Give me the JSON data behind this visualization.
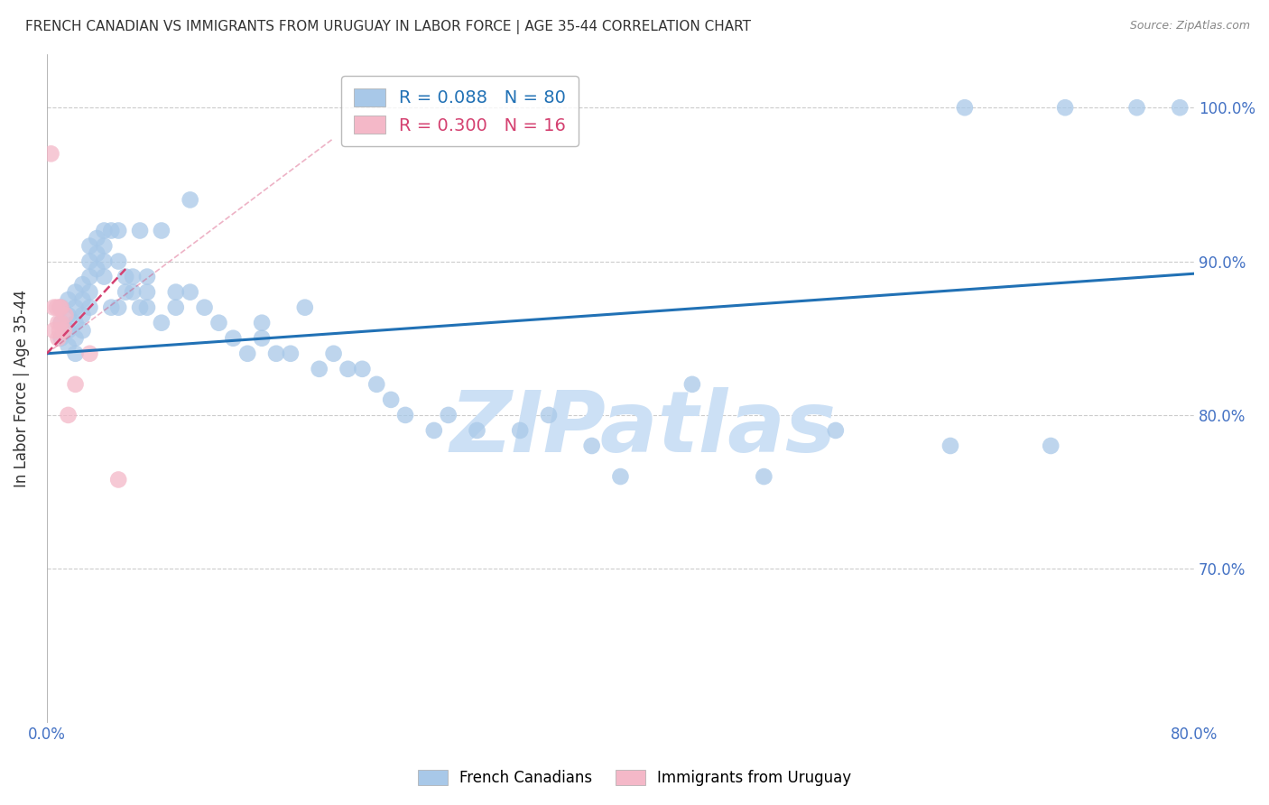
{
  "title": "FRENCH CANADIAN VS IMMIGRANTS FROM URUGUAY IN LABOR FORCE | AGE 35-44 CORRELATION CHART",
  "source": "Source: ZipAtlas.com",
  "ylabel": "In Labor Force | Age 35-44",
  "xlim": [
    0.0,
    0.8
  ],
  "ylim": [
    0.6,
    1.035
  ],
  "xticks": [
    0.0,
    0.1,
    0.2,
    0.3,
    0.4,
    0.5,
    0.6,
    0.7,
    0.8
  ],
  "xticklabels": [
    "0.0%",
    "",
    "",
    "",
    "",
    "",
    "",
    "",
    "80.0%"
  ],
  "ytick_positions": [
    0.7,
    0.8,
    0.9,
    1.0
  ],
  "yticklabels": [
    "70.0%",
    "80.0%",
    "90.0%",
    "100.0%"
  ],
  "blue_r": 0.088,
  "blue_n": 80,
  "pink_r": 0.3,
  "pink_n": 16,
  "legend_label_blue": "French Canadians",
  "legend_label_pink": "Immigrants from Uruguay",
  "blue_color": "#a8c8e8",
  "pink_color": "#f4b8c8",
  "blue_line_color": "#2171b5",
  "pink_line_color": "#d44070",
  "blue_scatter_x": [
    0.01,
    0.01,
    0.01,
    0.015,
    0.015,
    0.015,
    0.015,
    0.02,
    0.02,
    0.02,
    0.02,
    0.02,
    0.025,
    0.025,
    0.025,
    0.025,
    0.03,
    0.03,
    0.03,
    0.03,
    0.03,
    0.035,
    0.035,
    0.035,
    0.04,
    0.04,
    0.04,
    0.04,
    0.045,
    0.045,
    0.05,
    0.05,
    0.05,
    0.055,
    0.055,
    0.06,
    0.06,
    0.065,
    0.065,
    0.07,
    0.07,
    0.07,
    0.08,
    0.08,
    0.09,
    0.09,
    0.1,
    0.1,
    0.11,
    0.12,
    0.13,
    0.14,
    0.15,
    0.15,
    0.16,
    0.17,
    0.18,
    0.19,
    0.2,
    0.21,
    0.22,
    0.23,
    0.24,
    0.25,
    0.27,
    0.28,
    0.3,
    0.33,
    0.35,
    0.38,
    0.4,
    0.45,
    0.5,
    0.55,
    0.63,
    0.64,
    0.7,
    0.71,
    0.76,
    0.79
  ],
  "blue_scatter_y": [
    0.87,
    0.86,
    0.85,
    0.875,
    0.865,
    0.855,
    0.845,
    0.88,
    0.87,
    0.86,
    0.85,
    0.84,
    0.885,
    0.875,
    0.865,
    0.855,
    0.91,
    0.9,
    0.89,
    0.88,
    0.87,
    0.915,
    0.905,
    0.895,
    0.92,
    0.91,
    0.9,
    0.89,
    0.92,
    0.87,
    0.92,
    0.9,
    0.87,
    0.89,
    0.88,
    0.89,
    0.88,
    0.92,
    0.87,
    0.89,
    0.88,
    0.87,
    0.92,
    0.86,
    0.88,
    0.87,
    0.94,
    0.88,
    0.87,
    0.86,
    0.85,
    0.84,
    0.86,
    0.85,
    0.84,
    0.84,
    0.87,
    0.83,
    0.84,
    0.83,
    0.83,
    0.82,
    0.81,
    0.8,
    0.79,
    0.8,
    0.79,
    0.79,
    0.8,
    0.78,
    0.76,
    0.82,
    0.76,
    0.79,
    0.78,
    1.0,
    0.78,
    1.0,
    1.0,
    1.0
  ],
  "pink_scatter_x": [
    0.003,
    0.005,
    0.005,
    0.007,
    0.008,
    0.008,
    0.009,
    0.009,
    0.01,
    0.01,
    0.012,
    0.013,
    0.015,
    0.02,
    0.03,
    0.05
  ],
  "pink_scatter_y": [
    0.97,
    0.87,
    0.855,
    0.87,
    0.86,
    0.85,
    0.87,
    0.855,
    0.87,
    0.86,
    0.855,
    0.865,
    0.8,
    0.82,
    0.84,
    0.758
  ],
  "blue_line_x0": 0.0,
  "blue_line_x1": 0.8,
  "blue_line_y0": 0.84,
  "blue_line_y1": 0.892,
  "pink_line_x0": 0.0,
  "pink_line_x1": 0.055,
  "pink_line_y0": 0.84,
  "pink_line_y1": 0.895,
  "watermark": "ZIPatlas",
  "watermark_color": "#cce0f5",
  "background_color": "#ffffff",
  "grid_color": "#cccccc",
  "tick_color": "#4472c4",
  "ylabel_color": "#333333",
  "title_color": "#333333",
  "source_color": "#888888"
}
